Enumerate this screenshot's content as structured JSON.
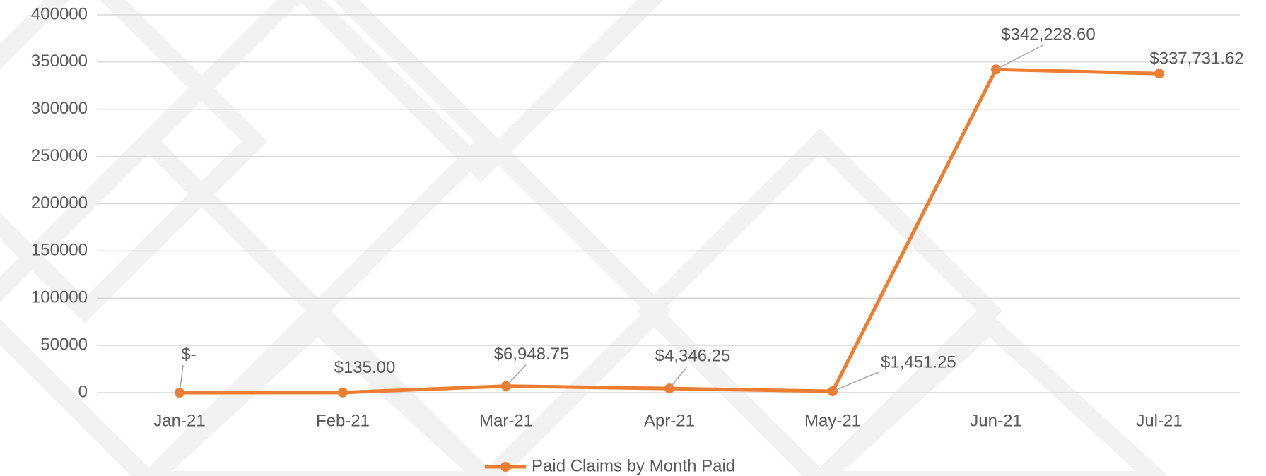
{
  "chart_data": {
    "type": "line",
    "categories": [
      "Jan-21",
      "Feb-21",
      "Mar-21",
      "Apr-21",
      "May-21",
      "Jun-21",
      "Jul-21"
    ],
    "series": [
      {
        "name": "Paid Claims by Month Paid",
        "color": "#ed7d31",
        "values": [
          0,
          135,
          6948.75,
          4346.25,
          1451.25,
          342228.6,
          337731.62
        ],
        "value_labels": [
          "$-",
          "$135.00",
          "$6,948.75",
          "$4,346.25",
          "$1,451.25",
          "$342,228.60",
          "$337,731.62"
        ]
      }
    ],
    "ylim": [
      0,
      400000
    ],
    "yticks": [
      0,
      50000,
      100000,
      150000,
      200000,
      250000,
      300000,
      350000,
      400000
    ],
    "grid": true,
    "legend": "bottom"
  }
}
